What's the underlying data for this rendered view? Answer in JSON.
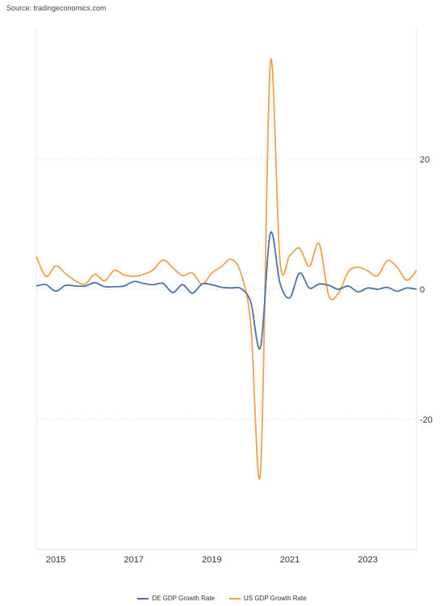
{
  "source": "Source: tradingeconomics.com",
  "chart_data": {
    "type": "line",
    "title": "",
    "xlabel": "",
    "ylabel": "",
    "xlim": [
      2014.5,
      2024.25
    ],
    "ylim": [
      -40,
      40
    ],
    "x_ticks": [
      {
        "value": 2015,
        "label": "2015"
      },
      {
        "value": 2017,
        "label": "2017"
      },
      {
        "value": 2019,
        "label": "2019"
      },
      {
        "value": 2021,
        "label": "2021"
      },
      {
        "value": 2023,
        "label": "2023"
      }
    ],
    "y_ticks": [
      {
        "value": 20,
        "label": "20"
      },
      {
        "value": 0,
        "label": "0"
      },
      {
        "value": -20,
        "label": "-20"
      }
    ],
    "grid": true,
    "legend_position": "bottom",
    "x": [
      2014.5,
      2014.75,
      2015.0,
      2015.25,
      2015.5,
      2015.75,
      2016.0,
      2016.25,
      2016.5,
      2016.75,
      2017.0,
      2017.25,
      2017.5,
      2017.75,
      2018.0,
      2018.25,
      2018.5,
      2018.75,
      2019.0,
      2019.25,
      2019.5,
      2019.75,
      2020.0,
      2020.25,
      2020.5,
      2020.75,
      2021.0,
      2021.25,
      2021.5,
      2021.75,
      2022.0,
      2022.25,
      2022.5,
      2022.75,
      2023.0,
      2023.25,
      2023.5,
      2023.75,
      2024.0,
      2024.25
    ],
    "series": [
      {
        "name": "DE GDP Growth Rate",
        "color": "#4a72b0",
        "values": [
          0.5,
          0.7,
          -0.3,
          0.6,
          0.5,
          0.5,
          1.0,
          0.4,
          0.4,
          0.5,
          1.2,
          0.9,
          0.7,
          0.9,
          -0.5,
          0.7,
          -0.6,
          0.8,
          0.7,
          0.3,
          0.2,
          0.1,
          -2.0,
          -8.9,
          8.6,
          0.9,
          -1.3,
          2.5,
          0.2,
          0.8,
          0.6,
          0.0,
          0.5,
          -0.4,
          0.2,
          0.0,
          0.3,
          -0.3,
          0.2,
          0.0
        ]
      },
      {
        "name": "US GDP Growth Rate",
        "color": "#f0a24a",
        "values": [
          5.0,
          2.0,
          3.6,
          2.4,
          1.3,
          0.8,
          2.3,
          1.3,
          2.9,
          2.2,
          2.0,
          2.3,
          3.0,
          4.5,
          3.3,
          2.1,
          2.5,
          0.8,
          2.5,
          3.5,
          4.6,
          2.4,
          -5.5,
          -28.0,
          34.8,
          4.2,
          5.2,
          6.3,
          3.5,
          7.0,
          -1.0,
          -0.6,
          2.7,
          3.4,
          2.8,
          2.1,
          4.4,
          3.4,
          1.4,
          2.9
        ]
      }
    ]
  }
}
